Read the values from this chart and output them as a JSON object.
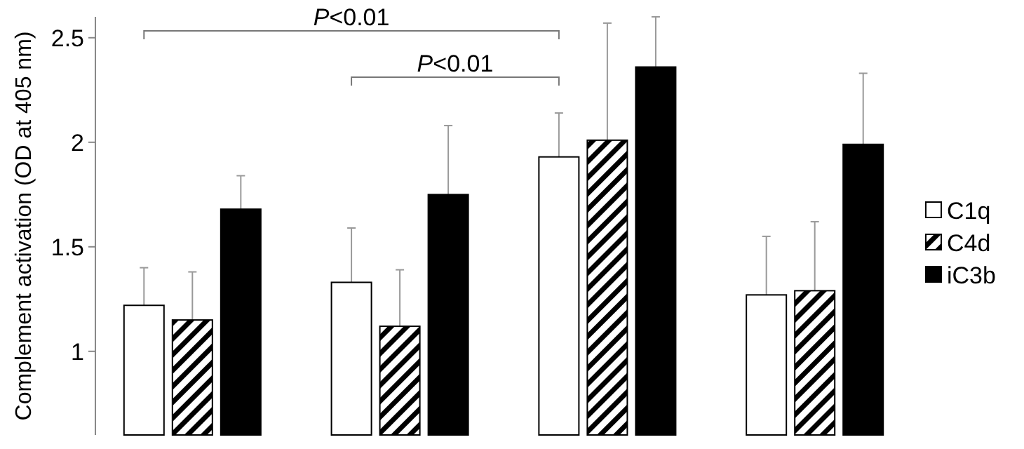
{
  "chart_data": {
    "type": "bar",
    "ylabel": "Complement activation (OD at 405 nm)",
    "categories": [
      null,
      null,
      null,
      null
    ],
    "ylim": [
      0.6,
      2.6
    ],
    "yticks": [
      1,
      1.5,
      2,
      2.5
    ],
    "legend": "right",
    "grid": false,
    "series": [
      {
        "name": "C1q",
        "color": "#ffffff",
        "values": [
          1.22,
          1.33,
          1.93,
          1.27
        ],
        "errors": [
          0.18,
          0.26,
          0.21,
          0.28
        ]
      },
      {
        "name": "C4d",
        "color": "#000000",
        "values": [
          1.15,
          1.12,
          2.01,
          1.29
        ],
        "errors": [
          0.23,
          0.27,
          0.56,
          0.33
        ]
      },
      {
        "name": "iC3b",
        "color": "#000000",
        "values": [
          1.68,
          1.75,
          2.36,
          1.99
        ],
        "errors": [
          0.16,
          0.33,
          0.24,
          0.34
        ]
      }
    ],
    "annotations": [
      "P<0.01",
      "P<0.01"
    ]
  }
}
